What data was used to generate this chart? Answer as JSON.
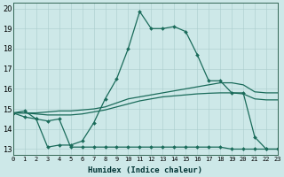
{
  "xlabel": "Humidex (Indice chaleur)",
  "background_color": "#cde8e8",
  "grid_color": "#aacccc",
  "line_color": "#1a6b5a",
  "xlim": [
    0,
    23
  ],
  "ylim": [
    12.7,
    20.3
  ],
  "xticks": [
    0,
    1,
    2,
    3,
    4,
    5,
    6,
    7,
    8,
    9,
    10,
    11,
    12,
    13,
    14,
    15,
    16,
    17,
    18,
    19,
    20,
    21,
    22,
    23
  ],
  "yticks": [
    13,
    14,
    15,
    16,
    17,
    18,
    19,
    20
  ],
  "line1_x": [
    0,
    1,
    2,
    3,
    4,
    5,
    6,
    7,
    8,
    9,
    10,
    11,
    12,
    13,
    14,
    15,
    16,
    17,
    18,
    19,
    20,
    21,
    22,
    23
  ],
  "line1_y": [
    14.8,
    14.9,
    14.5,
    13.1,
    13.2,
    13.2,
    13.4,
    14.3,
    15.5,
    16.5,
    18.0,
    19.85,
    19.0,
    19.0,
    19.1,
    18.85,
    17.7,
    16.4,
    16.4,
    15.8,
    15.8,
    13.6,
    13.0,
    13.0
  ],
  "line2_x": [
    0,
    1,
    2,
    3,
    4,
    5,
    6,
    7,
    8,
    9,
    10,
    11,
    12,
    13,
    14,
    15,
    16,
    17,
    18,
    19,
    20,
    21,
    22,
    23
  ],
  "line2_y": [
    14.8,
    14.6,
    14.5,
    14.4,
    14.5,
    13.1,
    13.1,
    13.1,
    13.1,
    13.1,
    13.1,
    13.1,
    13.1,
    13.1,
    13.1,
    13.1,
    13.1,
    13.1,
    13.1,
    13.0,
    13.0,
    13.0,
    13.0,
    13.0
  ],
  "line3_x": [
    0,
    1,
    2,
    3,
    4,
    5,
    6,
    7,
    8,
    9,
    10,
    11,
    12,
    13,
    14,
    15,
    16,
    17,
    18,
    19,
    20,
    21,
    22,
    23
  ],
  "line3_y": [
    14.8,
    14.8,
    14.8,
    14.85,
    14.9,
    14.9,
    14.95,
    15.0,
    15.1,
    15.3,
    15.5,
    15.6,
    15.7,
    15.8,
    15.9,
    16.0,
    16.1,
    16.2,
    16.3,
    16.3,
    16.2,
    15.85,
    15.8,
    15.8
  ],
  "line4_x": [
    0,
    1,
    2,
    3,
    4,
    5,
    6,
    7,
    8,
    9,
    10,
    11,
    12,
    13,
    14,
    15,
    16,
    17,
    18,
    19,
    20,
    21,
    22,
    23
  ],
  "line4_y": [
    14.8,
    14.8,
    14.75,
    14.7,
    14.7,
    14.7,
    14.75,
    14.85,
    14.95,
    15.1,
    15.25,
    15.4,
    15.5,
    15.6,
    15.65,
    15.7,
    15.75,
    15.78,
    15.8,
    15.8,
    15.75,
    15.5,
    15.45,
    15.45
  ]
}
